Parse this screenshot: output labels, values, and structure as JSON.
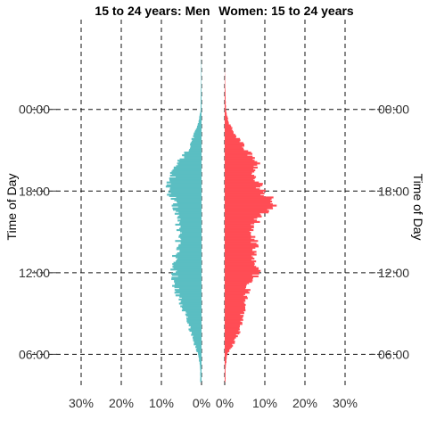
{
  "chart_data": {
    "type": "bar",
    "orientation": "horizontal-population-pyramid",
    "panels": [
      {
        "title": "15 to 24 years: Men",
        "series_name": "Men",
        "color": "#5BBEC2",
        "direction": "left",
        "xlim": [
          0,
          0.31
        ],
        "x_ticks": [
          0.3,
          0.2,
          0.1,
          0.0
        ],
        "x_tick_labels": [
          "30%",
          "20%",
          "10%",
          "0%"
        ],
        "y_ticks": [
          6,
          12,
          18,
          24
        ],
        "y_tick_labels": [
          "06:00",
          "12:00",
          "18:00",
          "00:00"
        ],
        "ylabel": "Time of Day",
        "ylabel_side": "left",
        "ylim": [
          3.6,
          30.6
        ],
        "profile_hours": [
          4.0,
          5.0,
          6.0,
          7.0,
          8.0,
          9.0,
          10.0,
          11.0,
          12.0,
          13.0,
          14.0,
          15.0,
          16.0,
          17.0,
          17.6,
          18.0,
          18.5,
          19.0,
          20.0,
          21.0,
          22.0,
          23.0,
          24.0,
          25.0,
          26.0,
          27.0,
          28.0
        ],
        "profile_values": [
          0.003,
          0.003,
          0.008,
          0.02,
          0.03,
          0.04,
          0.055,
          0.065,
          0.068,
          0.068,
          0.06,
          0.055,
          0.06,
          0.066,
          0.072,
          0.085,
          0.083,
          0.075,
          0.06,
          0.035,
          0.02,
          0.008,
          0.002,
          0.002,
          0.001,
          0.001,
          0.0
        ]
      },
      {
        "title": "Women: 15 to 24 years",
        "series_name": "Women",
        "color": "#FF4D55",
        "direction": "right",
        "xlim": [
          0,
          0.31
        ],
        "x_ticks": [
          0.0,
          0.1,
          0.2,
          0.3
        ],
        "x_tick_labels": [
          "0%",
          "10%",
          "20%",
          "30%"
        ],
        "y_ticks": [
          6,
          12,
          18,
          24
        ],
        "y_tick_labels": [
          "06:00",
          "12:00",
          "18:00",
          "00:00"
        ],
        "ylabel": "Time of Day",
        "ylabel_side": "right",
        "ylim": [
          3.6,
          30.6
        ],
        "profile_hours": [
          4.0,
          5.0,
          6.0,
          7.0,
          8.0,
          9.0,
          10.0,
          11.0,
          12.0,
          13.0,
          14.0,
          15.0,
          16.0,
          16.6,
          17.0,
          17.4,
          18.0,
          18.6,
          19.0,
          20.0,
          21.0,
          22.0,
          23.0,
          24.0,
          25.0,
          26.0,
          27.0
        ],
        "profile_values": [
          0.002,
          0.002,
          0.006,
          0.025,
          0.04,
          0.045,
          0.05,
          0.06,
          0.08,
          0.072,
          0.075,
          0.07,
          0.08,
          0.11,
          0.135,
          0.12,
          0.09,
          0.085,
          0.07,
          0.08,
          0.055,
          0.03,
          0.01,
          0.003,
          0.002,
          0.001,
          0.0
        ]
      }
    ]
  }
}
